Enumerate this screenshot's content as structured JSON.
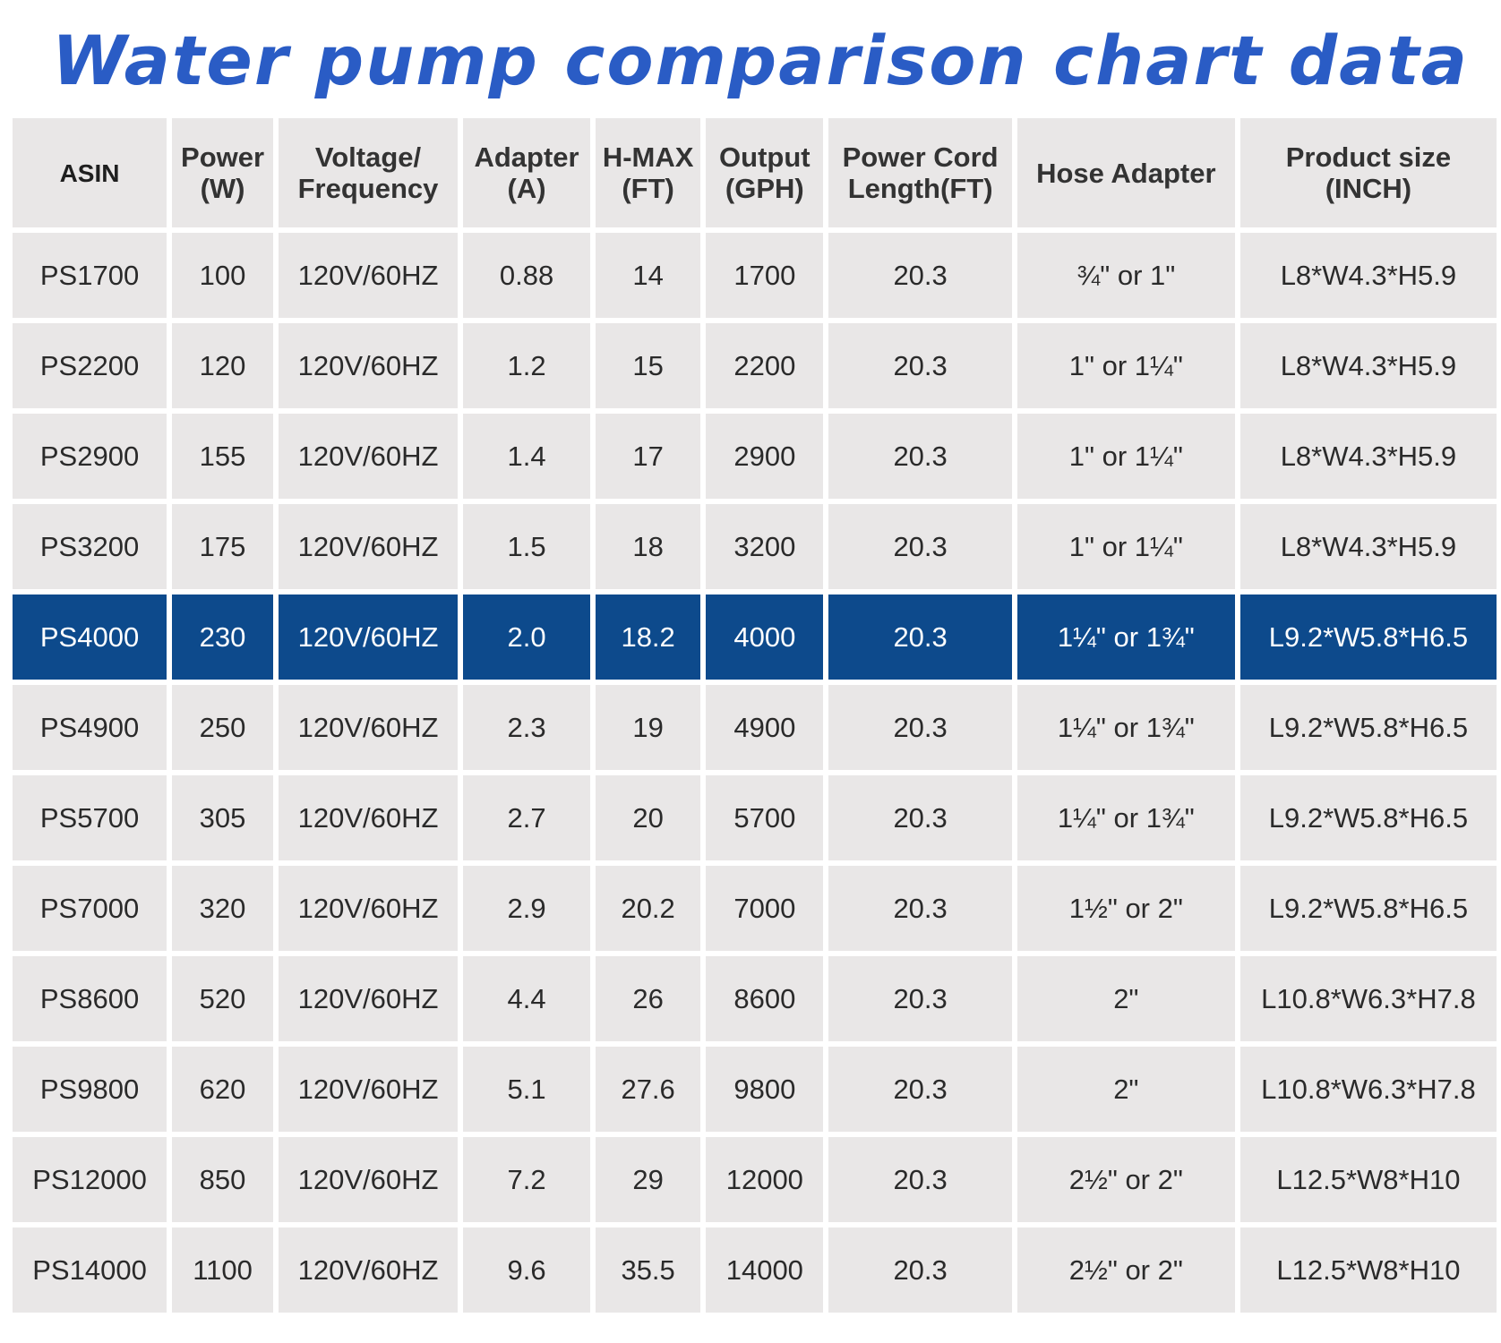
{
  "title": "Water pump comparison chart data",
  "colors": {
    "title": "#2a5cc5",
    "cell_bg": "#e9e7e7",
    "highlight_bg": "#0d4a8c",
    "highlight_text": "#ffffff"
  },
  "chart_data": {
    "type": "table",
    "title": "Water pump comparison chart data",
    "highlighted_row": "PS4000",
    "columns": [
      {
        "key": "asin",
        "label": [
          "ASIN"
        ]
      },
      {
        "key": "power",
        "label": [
          "Power",
          "(W)"
        ]
      },
      {
        "key": "voltage",
        "label": [
          "Voltage/",
          "Frequency"
        ]
      },
      {
        "key": "adapter",
        "label": [
          "Adapter",
          "(A)"
        ]
      },
      {
        "key": "hmax",
        "label": [
          "H-MAX",
          "(FT)"
        ]
      },
      {
        "key": "output",
        "label": [
          "Output",
          "(GPH)"
        ]
      },
      {
        "key": "cord",
        "label": [
          "Power Cord",
          "Length(FT)"
        ]
      },
      {
        "key": "hose",
        "label": [
          "Hose Adapter"
        ]
      },
      {
        "key": "size",
        "label": [
          "Product size",
          "(INCH)"
        ]
      }
    ],
    "rows": [
      [
        "PS1700",
        "100",
        "120V/60HZ",
        "0.88",
        "14",
        "1700",
        "20.3",
        "¾\" or 1\"",
        "L8*W4.3*H5.9"
      ],
      [
        "PS2200",
        "120",
        "120V/60HZ",
        "1.2",
        "15",
        "2200",
        "20.3",
        "1\" or 1¼\"",
        "L8*W4.3*H5.9"
      ],
      [
        "PS2900",
        "155",
        "120V/60HZ",
        "1.4",
        "17",
        "2900",
        "20.3",
        "1\" or 1¼\"",
        "L8*W4.3*H5.9"
      ],
      [
        "PS3200",
        "175",
        "120V/60HZ",
        "1.5",
        "18",
        "3200",
        "20.3",
        "1\" or 1¼\"",
        "L8*W4.3*H5.9"
      ],
      [
        "PS4000",
        "230",
        "120V/60HZ",
        "2.0",
        "18.2",
        "4000",
        "20.3",
        "1¼\" or 1¾\"",
        "L9.2*W5.8*H6.5"
      ],
      [
        "PS4900",
        "250",
        "120V/60HZ",
        "2.3",
        "19",
        "4900",
        "20.3",
        "1¼\" or 1¾\"",
        "L9.2*W5.8*H6.5"
      ],
      [
        "PS5700",
        "305",
        "120V/60HZ",
        "2.7",
        "20",
        "5700",
        "20.3",
        "1¼\" or 1¾\"",
        "L9.2*W5.8*H6.5"
      ],
      [
        "PS7000",
        "320",
        "120V/60HZ",
        "2.9",
        "20.2",
        "7000",
        "20.3",
        "1½\" or 2\"",
        "L9.2*W5.8*H6.5"
      ],
      [
        "PS8600",
        "520",
        "120V/60HZ",
        "4.4",
        "26",
        "8600",
        "20.3",
        "2\"",
        "L10.8*W6.3*H7.8"
      ],
      [
        "PS9800",
        "620",
        "120V/60HZ",
        "5.1",
        "27.6",
        "9800",
        "20.3",
        "2\"",
        "L10.8*W6.3*H7.8"
      ],
      [
        "PS12000",
        "850",
        "120V/60HZ",
        "7.2",
        "29",
        "12000",
        "20.3",
        "2½\" or 2\"",
        "L12.5*W8*H10"
      ],
      [
        "PS14000",
        "1100",
        "120V/60HZ",
        "9.6",
        "35.5",
        "14000",
        "20.3",
        "2½\" or 2\"",
        "L12.5*W8*H10"
      ]
    ]
  }
}
